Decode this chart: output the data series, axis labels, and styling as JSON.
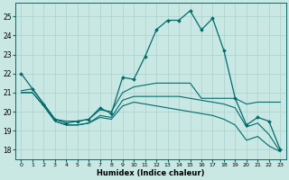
{
  "xlabel": "Humidex (Indice chaleur)",
  "xlim": [
    -0.5,
    23.5
  ],
  "ylim": [
    17.5,
    25.7
  ],
  "yticks": [
    18,
    19,
    20,
    21,
    22,
    23,
    24,
    25
  ],
  "xticks": [
    0,
    1,
    2,
    3,
    4,
    5,
    6,
    7,
    8,
    9,
    10,
    11,
    12,
    13,
    14,
    15,
    16,
    17,
    18,
    19,
    20,
    21,
    22,
    23
  ],
  "background_color": "#c9e8e4",
  "grid_color": "#a8d0cc",
  "line_color": "#006b6b",
  "series_with_markers": [
    22.0,
    21.2,
    20.4,
    19.6,
    19.4,
    19.5,
    19.6,
    20.2,
    19.9,
    21.8,
    21.7,
    22.9,
    24.3,
    24.8,
    24.8,
    25.3,
    24.3,
    24.9,
    23.2,
    20.7,
    19.3,
    19.7,
    19.5,
    18.0
  ],
  "series_plain": [
    [
      21.1,
      21.2,
      20.4,
      19.6,
      19.5,
      19.5,
      19.6,
      20.1,
      20.0,
      21.0,
      21.3,
      21.4,
      21.5,
      21.5,
      21.5,
      21.5,
      20.7,
      20.7,
      20.7,
      20.7,
      20.4,
      20.5,
      20.5,
      20.5
    ],
    [
      21.0,
      21.0,
      20.3,
      19.5,
      19.3,
      19.3,
      19.4,
      19.8,
      19.7,
      20.6,
      20.8,
      20.8,
      20.8,
      20.8,
      20.8,
      20.7,
      20.6,
      20.5,
      20.4,
      20.2,
      19.2,
      19.4,
      18.8,
      17.9
    ],
    [
      21.0,
      21.0,
      20.3,
      19.5,
      19.3,
      19.3,
      19.4,
      19.7,
      19.6,
      20.3,
      20.5,
      20.4,
      20.3,
      20.2,
      20.1,
      20.0,
      19.9,
      19.8,
      19.6,
      19.3,
      18.5,
      18.7,
      18.2,
      17.9
    ]
  ]
}
